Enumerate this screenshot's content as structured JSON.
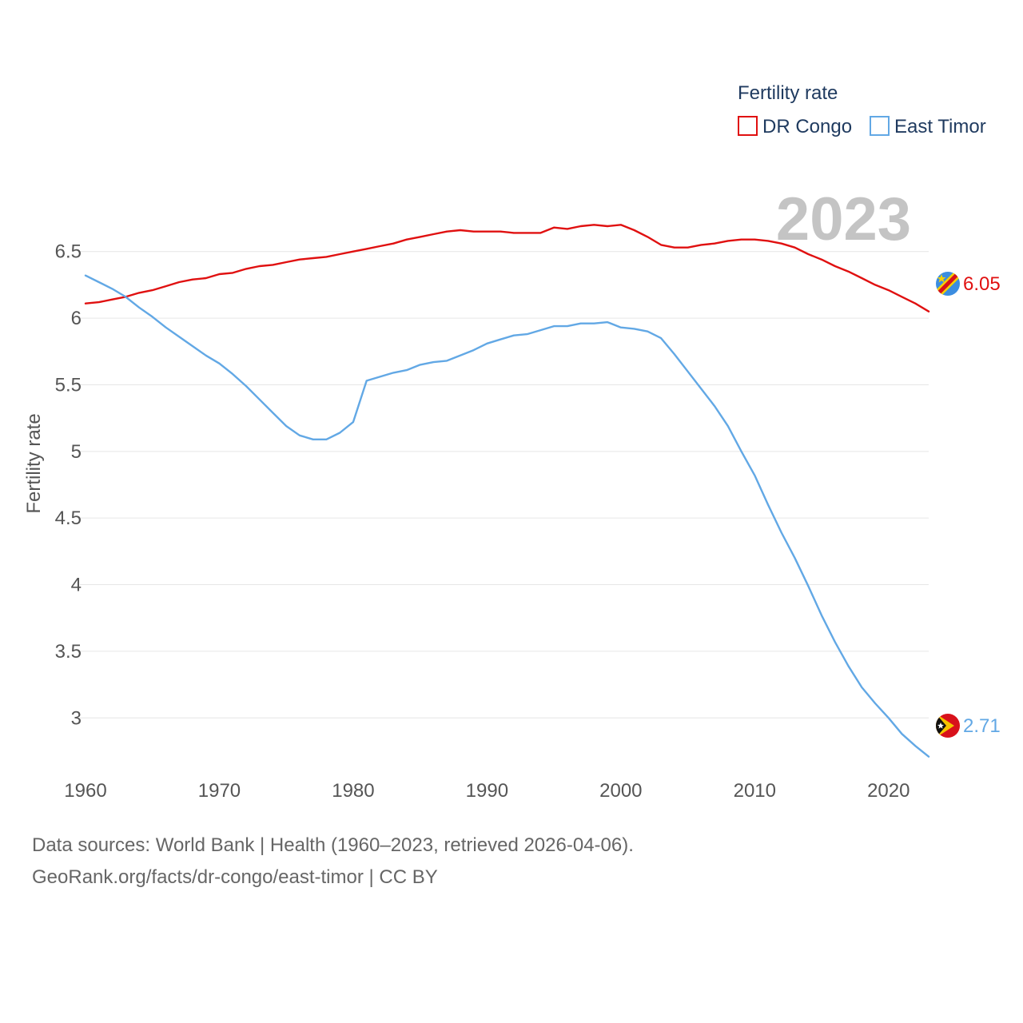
{
  "chart_data": {
    "type": "line",
    "legend_title": "Fertility rate",
    "ylabel": "Fertility rate",
    "year_label": "2023",
    "xlim": [
      1960,
      2023
    ],
    "ylim": [
      2.6,
      6.9
    ],
    "x_ticks": [
      1960,
      1970,
      1980,
      1990,
      2000,
      2010,
      2020
    ],
    "y_ticks": [
      3,
      3.5,
      4,
      4.5,
      5,
      5.5,
      6,
      6.5
    ],
    "y_tick_labels": [
      "3",
      "3.5",
      "4",
      "4.5",
      "5",
      "5.5",
      "6",
      "6.5"
    ],
    "grid": true,
    "legend_position": "top-right",
    "series": [
      {
        "name": "DR Congo",
        "color": "#e01010",
        "end_label": "6.05",
        "flag_icon": "dr-congo-flag-icon",
        "x": [
          1960,
          1961,
          1962,
          1963,
          1964,
          1965,
          1966,
          1967,
          1968,
          1969,
          1970,
          1971,
          1972,
          1973,
          1974,
          1975,
          1976,
          1977,
          1978,
          1979,
          1980,
          1981,
          1982,
          1983,
          1984,
          1985,
          1986,
          1987,
          1988,
          1989,
          1990,
          1991,
          1992,
          1993,
          1994,
          1995,
          1996,
          1997,
          1998,
          1999,
          2000,
          2001,
          2002,
          2003,
          2004,
          2005,
          2006,
          2007,
          2008,
          2009,
          2010,
          2011,
          2012,
          2013,
          2014,
          2015,
          2016,
          2017,
          2018,
          2019,
          2020,
          2021,
          2022,
          2023
        ],
        "values": [
          6.11,
          6.12,
          6.14,
          6.16,
          6.19,
          6.21,
          6.24,
          6.27,
          6.29,
          6.3,
          6.33,
          6.34,
          6.37,
          6.39,
          6.4,
          6.42,
          6.44,
          6.45,
          6.46,
          6.48,
          6.5,
          6.52,
          6.54,
          6.56,
          6.59,
          6.61,
          6.63,
          6.65,
          6.66,
          6.65,
          6.65,
          6.65,
          6.64,
          6.64,
          6.64,
          6.68,
          6.67,
          6.69,
          6.7,
          6.69,
          6.7,
          6.66,
          6.61,
          6.55,
          6.53,
          6.53,
          6.55,
          6.56,
          6.58,
          6.59,
          6.59,
          6.58,
          6.56,
          6.53,
          6.48,
          6.44,
          6.39,
          6.35,
          6.3,
          6.25,
          6.21,
          6.16,
          6.11,
          6.05
        ]
      },
      {
        "name": "East Timor",
        "color": "#62a8e5",
        "end_label": "2.71",
        "flag_icon": "east-timor-flag-icon",
        "x": [
          1960,
          1961,
          1962,
          1963,
          1964,
          1965,
          1966,
          1967,
          1968,
          1969,
          1970,
          1971,
          1972,
          1973,
          1974,
          1975,
          1976,
          1977,
          1978,
          1979,
          1980,
          1981,
          1982,
          1983,
          1984,
          1985,
          1986,
          1987,
          1988,
          1989,
          1990,
          1991,
          1992,
          1993,
          1994,
          1995,
          1996,
          1997,
          1998,
          1999,
          2000,
          2001,
          2002,
          2003,
          2004,
          2005,
          2006,
          2007,
          2008,
          2009,
          2010,
          2011,
          2012,
          2013,
          2014,
          2015,
          2016,
          2017,
          2018,
          2019,
          2020,
          2021,
          2022,
          2023
        ],
        "values": [
          6.32,
          6.27,
          6.22,
          6.16,
          6.08,
          6.01,
          5.93,
          5.86,
          5.79,
          5.72,
          5.66,
          5.58,
          5.49,
          5.39,
          5.29,
          5.19,
          5.12,
          5.09,
          5.09,
          5.14,
          5.22,
          5.53,
          5.56,
          5.59,
          5.61,
          5.65,
          5.67,
          5.68,
          5.72,
          5.76,
          5.81,
          5.84,
          5.87,
          5.88,
          5.91,
          5.94,
          5.94,
          5.96,
          5.96,
          5.97,
          5.93,
          5.92,
          5.9,
          5.85,
          5.73,
          5.6,
          5.47,
          5.34,
          5.19,
          5.0,
          4.82,
          4.6,
          4.39,
          4.2,
          3.99,
          3.77,
          3.57,
          3.39,
          3.23,
          3.11,
          3.0,
          2.88,
          2.79,
          2.71
        ]
      }
    ]
  },
  "footer": {
    "source_line": "Data sources: World Bank | Health (1960–2023, retrieved 2026-04-06).",
    "url_line": "GeoRank.org/facts/dr-congo/east-timor | CC BY"
  }
}
